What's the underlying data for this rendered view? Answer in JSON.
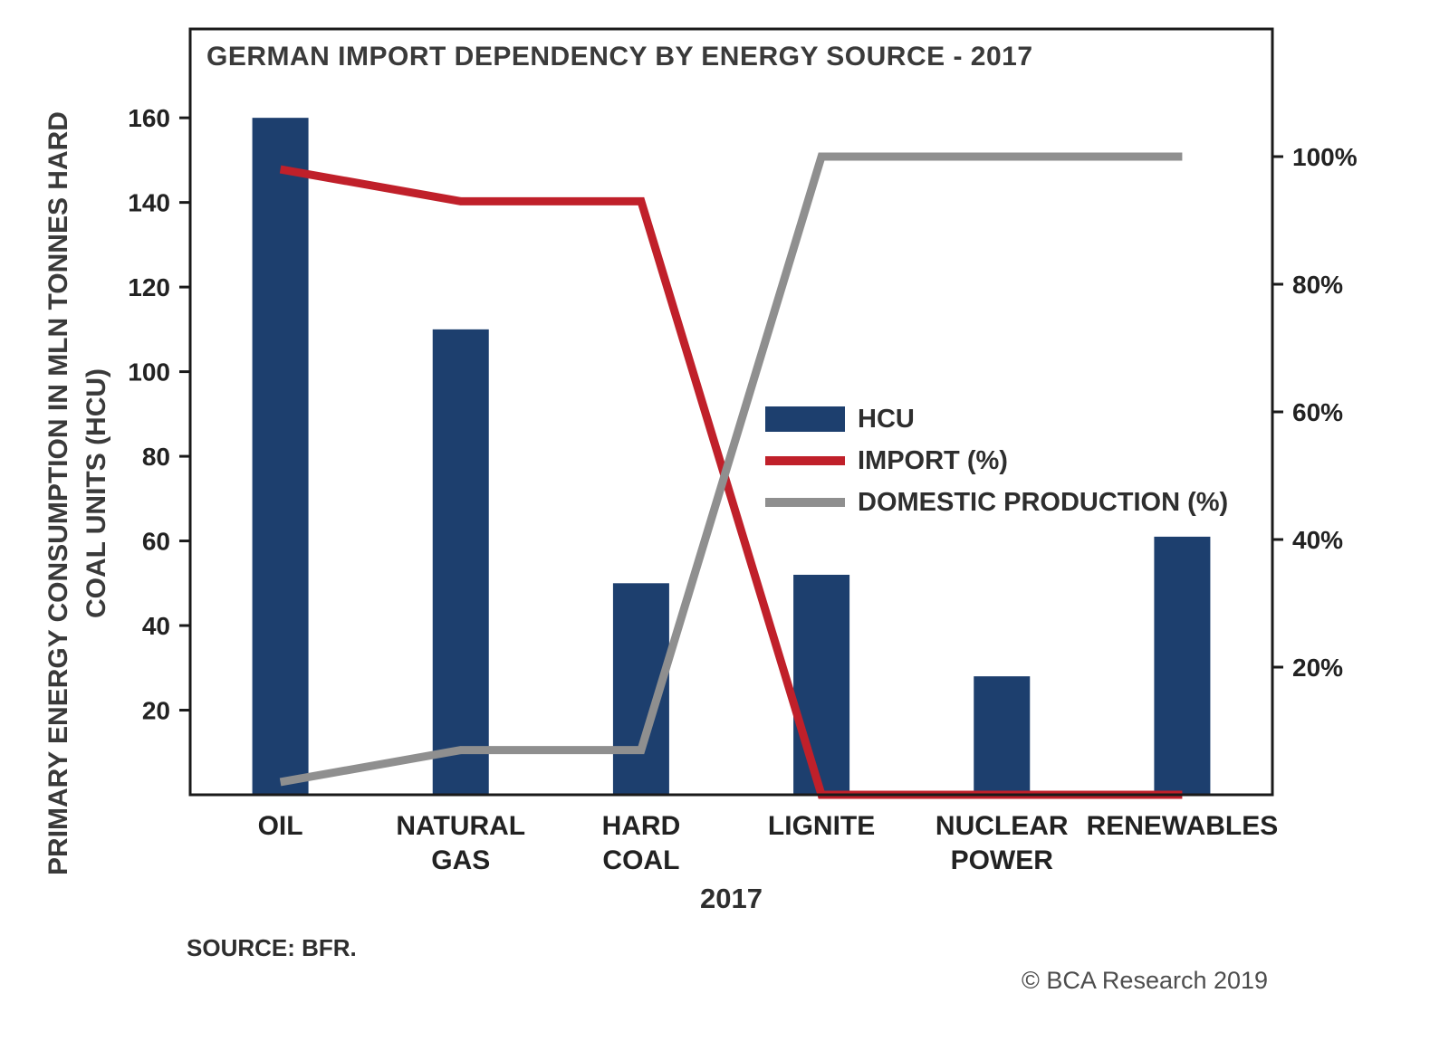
{
  "chart_data": {
    "type": "combo-bar-line",
    "title": "GERMAN IMPORT DEPENDENCY BY ENERGY SOURCE - 2017",
    "categories": [
      "OIL",
      "NATURAL GAS",
      "HARD COAL",
      "LIGNITE",
      "NUCLEAR POWER",
      "RENEWABLES"
    ],
    "series": [
      {
        "name": "HCU",
        "type": "bar",
        "axis": "left",
        "color": "#1d3f6e",
        "values": [
          160,
          110,
          50,
          52,
          28,
          61
        ]
      },
      {
        "name": "IMPORT (%)",
        "type": "line",
        "axis": "right",
        "color": "#c0202a",
        "values": [
          98,
          93,
          93,
          0,
          0,
          0
        ]
      },
      {
        "name": "DOMESTIC PRODUCTION (%)",
        "type": "line",
        "axis": "right",
        "color": "#8f8f8f",
        "values": [
          2,
          7,
          7,
          100,
          100,
          100
        ]
      }
    ],
    "left_axis": {
      "label": "PRIMARY ENERGY CONSUMPTION IN MLN TONNES HARD COAL UNITS (HCU)",
      "ticks": [
        20,
        40,
        60,
        80,
        100,
        120,
        140,
        160
      ],
      "min": 0,
      "max": 181
    },
    "right_axis": {
      "ticks": [
        "20%",
        "40%",
        "60%",
        "80%",
        "100%"
      ],
      "tick_values": [
        20,
        40,
        60,
        80,
        100
      ],
      "min": 0,
      "max": 120,
      "suffix": "%"
    },
    "x_axis_label": "2017",
    "legend_position": "middle-right",
    "grid": false,
    "frame_color": "#1a1a1a"
  },
  "footer": {
    "source": "SOURCE: BFR.",
    "copyright": "© BCA Research 2019"
  }
}
